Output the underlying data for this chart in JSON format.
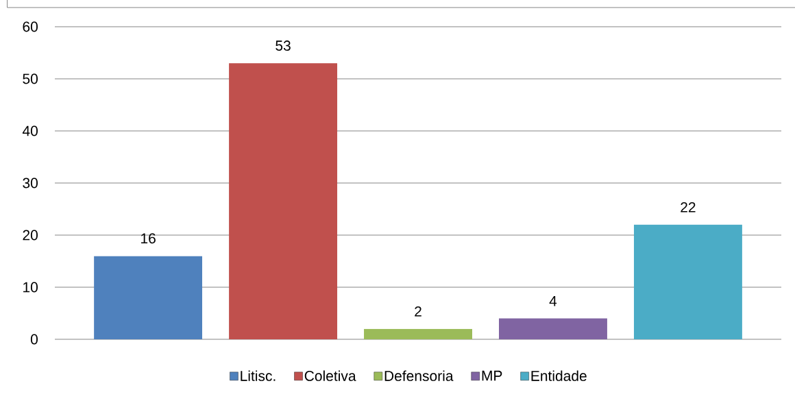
{
  "chart_data": {
    "type": "bar",
    "categories": [
      null
    ],
    "series": [
      {
        "name": "Litisc.",
        "color": "#4f81bd",
        "values": [
          16
        ]
      },
      {
        "name": "Coletiva",
        "color": "#c0504d",
        "values": [
          53
        ]
      },
      {
        "name": "Defensoria",
        "color": "#9bbb59",
        "values": [
          2
        ]
      },
      {
        "name": "MP",
        "color": "#8064a2",
        "values": [
          4
        ]
      },
      {
        "name": "Entidade",
        "color": "#4bacc6",
        "values": [
          22
        ]
      }
    ],
    "ylim": [
      0,
      60
    ],
    "yticks": [
      0,
      10,
      20,
      30,
      40,
      50,
      60
    ],
    "grid": "y",
    "legend": "bottom",
    "data_labels": true
  }
}
